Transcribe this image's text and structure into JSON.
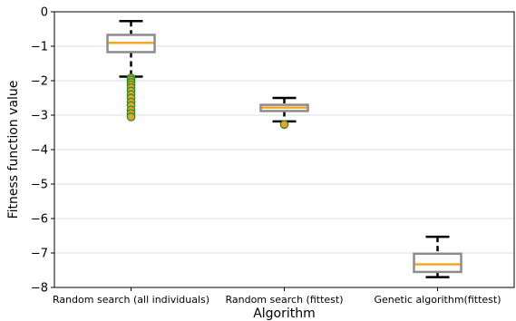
{
  "chart_data": {
    "type": "box",
    "title": "",
    "xlabel": "Algorithm",
    "ylabel": "Fitness function value",
    "ylim": [
      -8,
      0
    ],
    "yticks": [
      0,
      -1,
      -2,
      -3,
      -4,
      -5,
      -6,
      -7,
      -8
    ],
    "grid": "horizontal",
    "categories": [
      "Random search (all individuals)",
      "Random search (fittest)",
      "Genetic algorithm(fittest)"
    ],
    "boxes": [
      {
        "whisker_high": -0.27,
        "q3": -0.67,
        "median": -0.9,
        "q1": -1.17,
        "whisker_low": -1.88,
        "outliers": [
          -1.92,
          -1.98,
          -2.05,
          -2.12,
          -2.2,
          -2.3,
          -2.4,
          -2.5,
          -2.62,
          -2.72,
          -2.85,
          -2.95,
          -3.05
        ]
      },
      {
        "whisker_high": -2.5,
        "q3": -2.7,
        "median": -2.78,
        "q1": -2.88,
        "whisker_low": -3.18,
        "outliers": [
          -3.27
        ]
      },
      {
        "whisker_high": -6.53,
        "q3": -7.02,
        "median": -7.33,
        "q1": -7.55,
        "whisker_low": -7.7,
        "outliers": []
      }
    ],
    "colors": {
      "box": "#8c8c8c",
      "median": "#f5a623",
      "whisker": "#000000",
      "flier_fill": "#f0a020",
      "flier_edge": "#2e8b2e",
      "grid": "#dddddd"
    }
  }
}
